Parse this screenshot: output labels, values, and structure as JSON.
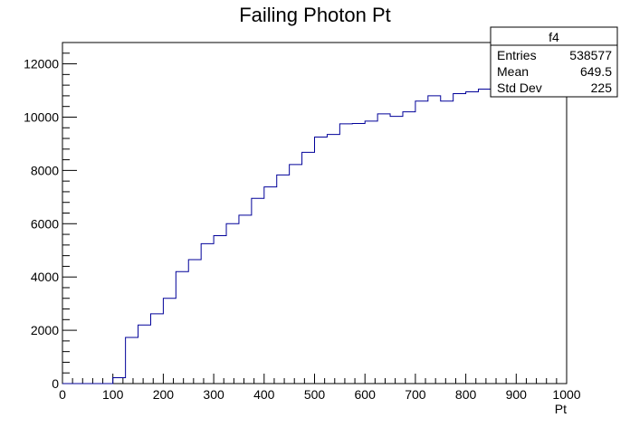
{
  "chart_data": {
    "type": "bar",
    "title": "Failing Photon Pt",
    "xlabel": "Pt",
    "ylabel": "",
    "xlim": [
      0,
      1000
    ],
    "ylim": [
      0,
      12800
    ],
    "x_ticks": [
      0,
      100,
      200,
      300,
      400,
      500,
      600,
      700,
      800,
      900,
      1000
    ],
    "y_ticks": [
      0,
      2000,
      4000,
      6000,
      8000,
      10000,
      12000
    ],
    "line_color": "#000099",
    "bin_edges": [
      0,
      25,
      50,
      75,
      100,
      125,
      150,
      175,
      200,
      225,
      250,
      275,
      300,
      325,
      350,
      375,
      400,
      425,
      450,
      475,
      500,
      525,
      550,
      575,
      600,
      625,
      650,
      675,
      700,
      725,
      750,
      775,
      800,
      825,
      850,
      875,
      900,
      925,
      950,
      975,
      1000
    ],
    "values": [
      0,
      0,
      0,
      0,
      220,
      1730,
      2200,
      2620,
      3200,
      4200,
      4650,
      5250,
      5550,
      6000,
      6320,
      6950,
      7380,
      7830,
      8220,
      8680,
      9250,
      9350,
      9750,
      9760,
      9850,
      10120,
      10030,
      10200,
      10600,
      10800,
      10600,
      10880,
      10950,
      11050,
      11150,
      11300,
      11400,
      11550,
      11700,
      11800
    ],
    "stats_box": {
      "name": "f4",
      "rows": [
        {
          "label": "Entries",
          "value": "538577"
        },
        {
          "label": "Mean",
          "value": "649.5"
        },
        {
          "label": "Std Dev",
          "value": "225"
        }
      ]
    }
  }
}
